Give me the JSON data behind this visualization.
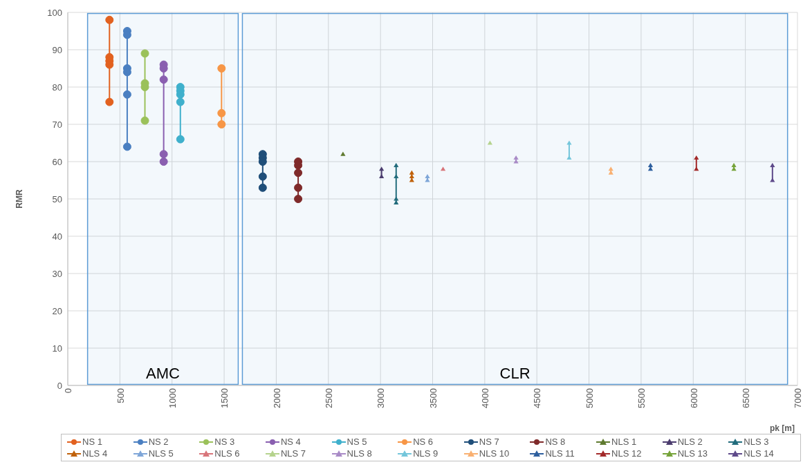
{
  "chart_data": {
    "type": "line",
    "xlabel": "pk [m]",
    "ylabel": "RMR",
    "xlim": [
      0,
      7000
    ],
    "xticks": [
      0,
      500,
      1000,
      1500,
      2000,
      2500,
      3000,
      3500,
      4000,
      4500,
      5000,
      5500,
      6000,
      6500,
      7000
    ],
    "ylim": [
      0,
      100
    ],
    "yticks": [
      0,
      10,
      20,
      30,
      40,
      50,
      60,
      70,
      80,
      90,
      100
    ],
    "grid": true,
    "legend": "bottom",
    "marker": "circle",
    "line_style": "solid",
    "bands": [
      {
        "axis": "x",
        "from": 190,
        "to": 1635,
        "label": "AMC",
        "color": "#5b9bd5"
      },
      {
        "axis": "x",
        "from": 1675,
        "to": 6905,
        "label": "CLR",
        "color": "#5b9bd5"
      }
    ],
    "series": [
      {
        "name": "NS 1",
        "color": "#e2611f",
        "x": [
          400,
          400,
          400,
          400,
          400
        ],
        "values": [
          98,
          88,
          87,
          86,
          76
        ]
      },
      {
        "name": "NS 2",
        "color": "#4a7fc1",
        "x": [
          570,
          570,
          570,
          570,
          570,
          570
        ],
        "values": [
          95,
          94,
          85,
          84,
          78,
          64
        ]
      },
      {
        "name": "NS 3",
        "color": "#9bc15a",
        "x": [
          740,
          740,
          740,
          740
        ],
        "values": [
          89,
          81,
          80,
          71
        ]
      },
      {
        "name": "NS 4",
        "color": "#8a5fb0",
        "x": [
          920,
          920,
          920,
          920,
          920
        ],
        "values": [
          86,
          85,
          82,
          62,
          60
        ]
      },
      {
        "name": "NS 5",
        "color": "#3fb0cc",
        "x": [
          1080,
          1080,
          1080,
          1080,
          1080
        ],
        "values": [
          80,
          79,
          78,
          76,
          66
        ]
      },
      {
        "name": "NS 6",
        "color": "#f79646",
        "x": [
          1475,
          1475,
          1475
        ],
        "values": [
          85,
          73,
          70
        ]
      },
      {
        "name": "NS 7",
        "color": "#1f4e79",
        "x": [
          1870,
          1870,
          1870,
          1870,
          1870
        ],
        "values": [
          62,
          61,
          60,
          56,
          53
        ]
      },
      {
        "name": "NS 8",
        "color": "#7f2a2a",
        "x": [
          2210,
          2210,
          2210,
          2210,
          2210
        ],
        "values": [
          60,
          59,
          57,
          53,
          50
        ]
      },
      {
        "name": "NLS 1",
        "color": "#5f7a2f",
        "marker": "triangle",
        "x": [
          2640
        ],
        "values": [
          62
        ]
      },
      {
        "name": "NLS 2",
        "color": "#4b3c6e",
        "marker": "triangle",
        "x": [
          3010,
          3010
        ],
        "values": [
          58,
          56
        ]
      },
      {
        "name": "NLS 3",
        "color": "#226c7c",
        "marker": "triangle",
        "x": [
          3150,
          3150,
          3150,
          3150
        ],
        "values": [
          59,
          56,
          50,
          49
        ]
      },
      {
        "name": "NLS 4",
        "color": "#c0610a",
        "marker": "triangle",
        "x": [
          3300,
          3300,
          3300
        ],
        "values": [
          57,
          56,
          55
        ]
      },
      {
        "name": "NLS 5",
        "color": "#7fa6d8",
        "marker": "triangle",
        "x": [
          3450,
          3450
        ],
        "values": [
          56,
          55
        ]
      },
      {
        "name": "NLS 6",
        "color": "#d8757a",
        "marker": "triangle",
        "x": [
          3600
        ],
        "values": [
          58
        ]
      },
      {
        "name": "NLS 7",
        "color": "#b5d38d",
        "marker": "triangle",
        "x": [
          4050
        ],
        "values": [
          65
        ]
      },
      {
        "name": "NLS 8",
        "color": "#a98bc7",
        "marker": "triangle",
        "x": [
          4300,
          4300
        ],
        "values": [
          61,
          60
        ]
      },
      {
        "name": "NLS 9",
        "color": "#74c6db",
        "marker": "triangle",
        "x": [
          4810,
          4810
        ],
        "values": [
          65,
          61
        ]
      },
      {
        "name": "NLS 10",
        "color": "#f9b071",
        "marker": "triangle",
        "x": [
          5210,
          5210
        ],
        "values": [
          58,
          57
        ]
      },
      {
        "name": "NLS 11",
        "color": "#2e5f9e",
        "marker": "triangle",
        "x": [
          5590,
          5590
        ],
        "values": [
          59,
          58
        ]
      },
      {
        "name": "NLS 12",
        "color": "#a32a2a",
        "marker": "triangle",
        "x": [
          6030,
          6030
        ],
        "values": [
          61,
          58
        ]
      },
      {
        "name": "NLS 13",
        "color": "#76a33a",
        "marker": "triangle",
        "x": [
          6390,
          6390
        ],
        "values": [
          59,
          58
        ]
      },
      {
        "name": "NLS 14",
        "color": "#5e4a8a",
        "marker": "triangle",
        "x": [
          6760,
          6760
        ],
        "values": [
          59,
          55
        ]
      }
    ]
  }
}
